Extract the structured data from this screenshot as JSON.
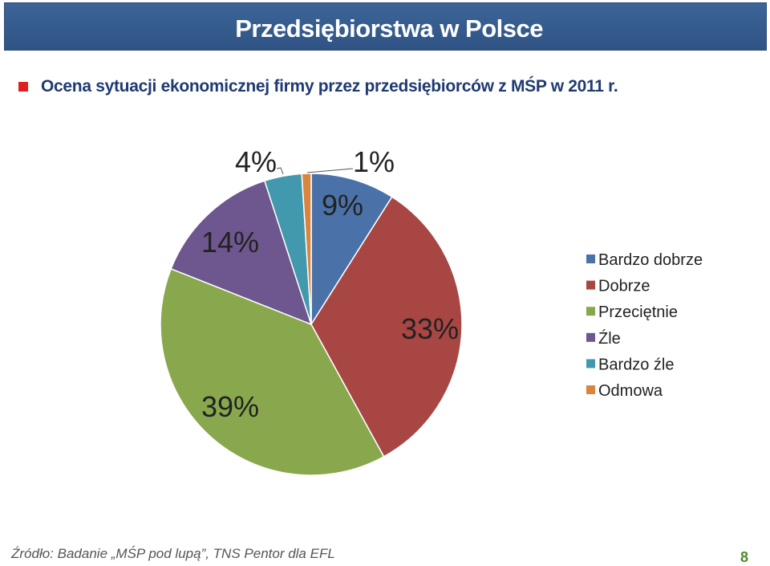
{
  "header": {
    "title": "Przedsiębiorstwa w Polsce"
  },
  "subtitle": {
    "text": "Ocena sytuacji ekonomicznej firmy przez przedsiębiorców  z MŚP w 2011 r.",
    "bullet_color": "#e02020"
  },
  "chart_data": {
    "type": "pie",
    "title": "",
    "slices": [
      {
        "label": "Bardzo dobrze",
        "value": 9,
        "display": "9%",
        "color": "#4a72a8"
      },
      {
        "label": "Dobrze",
        "value": 33,
        "display": "33%",
        "color": "#a84644"
      },
      {
        "label": "Przeciętnie",
        "value": 39,
        "display": "39%",
        "color": "#89a84d"
      },
      {
        "label": "Źle",
        "value": 14,
        "display": "14%",
        "color": "#6e568e"
      },
      {
        "label": "Bardzo źle",
        "value": 4,
        "display": "4%",
        "color": "#4298ac"
      },
      {
        "label": "Odmowa",
        "value": 1,
        "display": "1%",
        "color": "#d98540"
      }
    ],
    "legend_position": "right"
  },
  "footer": {
    "source": "Źródło: Badanie „MŚP pod lupą”, TNS Pentor dla EFL",
    "page_number": "8"
  }
}
